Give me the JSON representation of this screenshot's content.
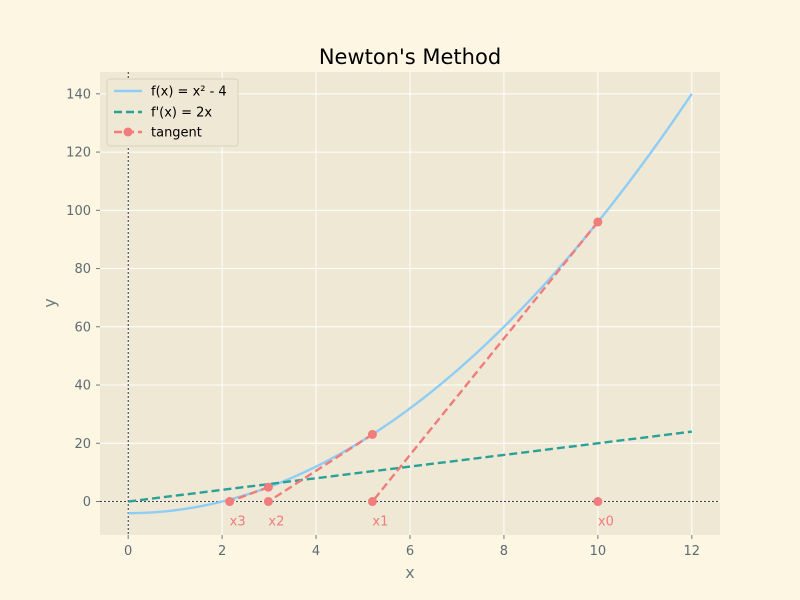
{
  "chart_data": {
    "type": "line",
    "title": "Newton's Method",
    "xlabel": "x",
    "ylabel": "y",
    "xlim": [
      -0.6,
      12.6
    ],
    "ylim": [
      -11.5,
      147.5
    ],
    "xticks": [
      0,
      2,
      4,
      6,
      8,
      10,
      12
    ],
    "yticks": [
      0,
      20,
      40,
      60,
      80,
      100,
      120,
      140
    ],
    "grid": true,
    "legend_position": "top-left",
    "colors": {
      "background": "#fdf6e3",
      "plot_background": "#eee8d5",
      "grid": "#ffffff",
      "function": "#8ecdf5",
      "derivative": "#2aa198",
      "tangent": "#f07c7c"
    },
    "series": [
      {
        "name": "f(x) = x² - 4",
        "kind": "curve",
        "expression": "x^2 - 4",
        "domain": [
          0,
          12
        ]
      },
      {
        "name": "f'(x) = 2x",
        "kind": "dashed-line",
        "x": [
          0,
          12
        ],
        "y": [
          0,
          24
        ]
      },
      {
        "name": "tangent",
        "kind": "dashed-markers",
        "segments": [
          {
            "from": [
              10,
              96
            ],
            "to": [
              5.2,
              0
            ]
          },
          {
            "from": [
              5.2,
              23.04
            ],
            "to": [
              2.985,
              0
            ]
          },
          {
            "from": [
              2.985,
              4.91
            ],
            "to": [
              2.16,
              0
            ]
          }
        ],
        "points": [
          {
            "x": 10,
            "y": 96
          },
          {
            "x": 5.2,
            "y": 23.04
          },
          {
            "x": 2.985,
            "y": 4.91
          },
          {
            "x": 10,
            "y": 0
          },
          {
            "x": 5.2,
            "y": 0
          },
          {
            "x": 2.985,
            "y": 0
          },
          {
            "x": 2.16,
            "y": 0
          }
        ]
      }
    ],
    "annotations": [
      {
        "text": "x0",
        "x": 10,
        "y": 0
      },
      {
        "text": "x1",
        "x": 5.2,
        "y": 0
      },
      {
        "text": "x2",
        "x": 2.985,
        "y": 0
      },
      {
        "text": "x3",
        "x": 2.16,
        "y": 0
      }
    ]
  }
}
